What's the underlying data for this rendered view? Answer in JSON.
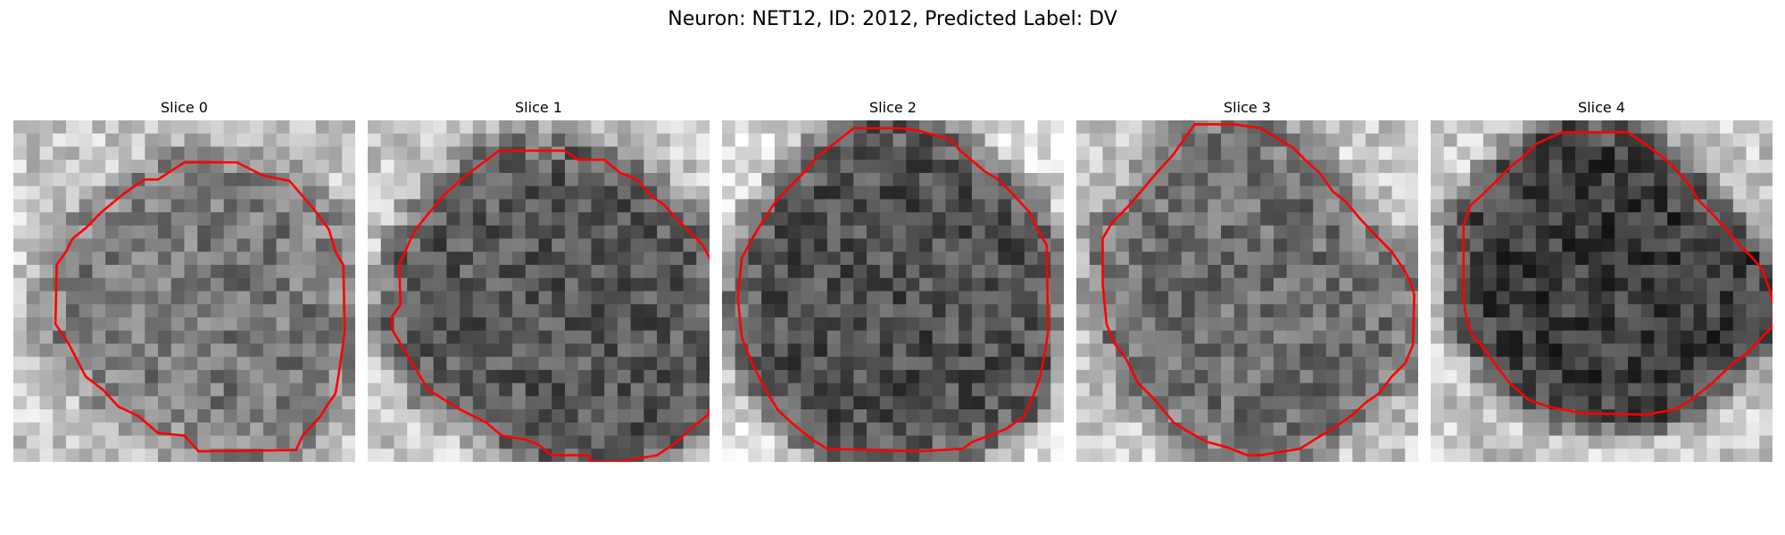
{
  "figure": {
    "title": "Neuron: NET12, ID: 2012, Predicted Label: DV"
  },
  "colors": {
    "contour": "#ff0000",
    "background": "#ffffff"
  },
  "grid": {
    "rows": 26,
    "cols": 26
  },
  "slices": [
    {
      "label": "Slice 0",
      "center_gray": 120,
      "edge_gray": 200,
      "seed": 11,
      "contour": [
        [
          13,
          3.2
        ],
        [
          17,
          3.2
        ],
        [
          19,
          4.2
        ],
        [
          21,
          4.6
        ],
        [
          22.8,
          6.7
        ],
        [
          24,
          8.3
        ],
        [
          24.5,
          10
        ],
        [
          25.1,
          11
        ],
        [
          25.2,
          16
        ],
        [
          25,
          17.5
        ],
        [
          24.8,
          19
        ],
        [
          24.5,
          20.8
        ],
        [
          24,
          21.5
        ],
        [
          23.3,
          22.6
        ],
        [
          22,
          24
        ],
        [
          21.5,
          25.1
        ],
        [
          14.1,
          25.2
        ],
        [
          13,
          24
        ],
        [
          11,
          23.8
        ],
        [
          9.5,
          22.5
        ],
        [
          8,
          21.8
        ],
        [
          6.8,
          20.5
        ],
        [
          5.5,
          19.5
        ],
        [
          4.2,
          17
        ],
        [
          3.2,
          15.5
        ],
        [
          3.3,
          11
        ],
        [
          4,
          10
        ],
        [
          4.5,
          9
        ],
        [
          5.5,
          8.2
        ],
        [
          6.8,
          6.9
        ],
        [
          8.5,
          5.5
        ],
        [
          10,
          4.5
        ],
        [
          11,
          4.5
        ]
      ]
    },
    {
      "label": "Slice 1",
      "center_gray": 88,
      "edge_gray": 200,
      "seed": 23,
      "contour": [
        [
          10,
          2.3
        ],
        [
          15,
          2.3
        ],
        [
          16,
          3
        ],
        [
          18,
          3
        ],
        [
          19.2,
          4
        ],
        [
          20.5,
          4.5
        ],
        [
          21.5,
          5.7
        ],
        [
          22.5,
          6.4
        ],
        [
          24,
          8
        ],
        [
          25.5,
          9.5
        ],
        [
          26,
          10.5
        ],
        [
          26.5,
          11.2
        ],
        [
          27,
          11
        ],
        [
          26.8,
          20
        ],
        [
          25.8,
          22.5
        ],
        [
          24.5,
          23.5
        ],
        [
          23.5,
          24.5
        ],
        [
          22,
          25.5
        ],
        [
          19,
          26
        ],
        [
          17,
          26
        ],
        [
          16.8,
          25.5
        ],
        [
          14,
          25.5
        ],
        [
          13,
          24.7
        ],
        [
          12,
          24.3
        ],
        [
          10.2,
          24
        ],
        [
          9,
          23
        ],
        [
          7,
          22
        ],
        [
          4.6,
          20.5
        ],
        [
          4,
          19.5
        ],
        [
          2.5,
          17
        ],
        [
          1.9,
          16
        ],
        [
          1.8,
          15
        ],
        [
          2.5,
          14
        ],
        [
          2.4,
          11
        ],
        [
          3.5,
          8.5
        ],
        [
          4.7,
          7
        ],
        [
          5.8,
          5.7
        ],
        [
          7,
          4.6
        ],
        [
          8,
          3.8
        ]
      ]
    },
    {
      "label": "Slice 2",
      "center_gray": 80,
      "edge_gray": 220,
      "seed": 37,
      "contour": [
        [
          10,
          0.6
        ],
        [
          13.5,
          0.6
        ],
        [
          15,
          0.8
        ],
        [
          17.5,
          1.5
        ],
        [
          18,
          2.2
        ],
        [
          20,
          3.9
        ],
        [
          21,
          4.5
        ],
        [
          22,
          5.5
        ],
        [
          23.4,
          7
        ],
        [
          24,
          8.3
        ],
        [
          24.7,
          9.5
        ],
        [
          24.8,
          16
        ],
        [
          24.6,
          17.5
        ],
        [
          24.2,
          19.5
        ],
        [
          23.7,
          20.9
        ],
        [
          23,
          22.5
        ],
        [
          21.6,
          23.5
        ],
        [
          19,
          24.5
        ],
        [
          18.3,
          25
        ],
        [
          15,
          25.2
        ],
        [
          8,
          25
        ],
        [
          7,
          24.4
        ],
        [
          5.5,
          23.2
        ],
        [
          4.3,
          22.1
        ],
        [
          3.3,
          20.5
        ],
        [
          2.3,
          18.5
        ],
        [
          1.5,
          16.5
        ],
        [
          1.2,
          13.5
        ],
        [
          1.5,
          10.5
        ],
        [
          2.3,
          9
        ],
        [
          3.2,
          7.5
        ],
        [
          4,
          6.3
        ],
        [
          5.2,
          5
        ],
        [
          6.2,
          4
        ],
        [
          7.3,
          2.7
        ],
        [
          8.5,
          1.8
        ]
      ]
    },
    {
      "label": "Slice 3",
      "center_gray": 110,
      "edge_gray": 200,
      "seed": 53,
      "contour": [
        [
          9,
          0.3
        ],
        [
          12,
          0.3
        ],
        [
          14,
          0.6
        ],
        [
          15.5,
          1.5
        ],
        [
          16.5,
          2.1
        ],
        [
          17.5,
          3.1
        ],
        [
          18.5,
          4
        ],
        [
          19.5,
          5.4
        ],
        [
          20.5,
          6.2
        ],
        [
          21.5,
          7.4
        ],
        [
          23,
          9
        ],
        [
          24,
          10
        ],
        [
          25,
          11.5
        ],
        [
          25.5,
          12.5
        ],
        [
          25.7,
          13.3
        ],
        [
          25.6,
          17.1
        ],
        [
          25,
          18.5
        ],
        [
          24,
          19.5
        ],
        [
          23,
          20.8
        ],
        [
          22,
          21.5
        ],
        [
          20.9,
          22.5
        ],
        [
          19.9,
          23.2
        ],
        [
          18.6,
          24
        ],
        [
          17,
          25
        ],
        [
          14,
          25.5
        ],
        [
          13,
          25.5
        ],
        [
          11.5,
          24.9
        ],
        [
          10,
          24.5
        ],
        [
          8.5,
          23.7
        ],
        [
          7.4,
          23
        ],
        [
          6,
          21.3
        ],
        [
          4.7,
          20
        ],
        [
          3.8,
          18.2
        ],
        [
          2.9,
          17
        ],
        [
          2.3,
          15.5
        ],
        [
          2,
          12.5
        ],
        [
          2,
          9
        ],
        [
          2.7,
          7.8
        ],
        [
          3.9,
          6.6
        ],
        [
          5,
          5.3
        ],
        [
          6.2,
          3.9
        ],
        [
          7.3,
          2.7
        ]
      ]
    },
    {
      "label": "Slice 4",
      "center_gray": 60,
      "edge_gray": 200,
      "seed": 71,
      "contour": [
        [
          8,
          1.8
        ],
        [
          10,
          0.9
        ],
        [
          15,
          0.9
        ],
        [
          16.3,
          1.8
        ],
        [
          18,
          3.1
        ],
        [
          19.6,
          4.8
        ],
        [
          20.3,
          6
        ],
        [
          21.5,
          7.2
        ],
        [
          22.4,
          8.2
        ],
        [
          23.5,
          9.5
        ],
        [
          24.5,
          10.5
        ],
        [
          25.2,
          11.3
        ],
        [
          25.8,
          13
        ],
        [
          26.1,
          14.2
        ],
        [
          26,
          15.7
        ],
        [
          25.4,
          16.3
        ],
        [
          24.3,
          17.5
        ],
        [
          23,
          18.5
        ],
        [
          21.3,
          20.1
        ],
        [
          19.5,
          21.5
        ],
        [
          18.5,
          22
        ],
        [
          16.5,
          22.4
        ],
        [
          11.5,
          22.3
        ],
        [
          9,
          21.8
        ],
        [
          7.5,
          21.3
        ],
        [
          6,
          20
        ],
        [
          5,
          18.7
        ],
        [
          4,
          17.3
        ],
        [
          3.1,
          16.3
        ],
        [
          2.7,
          15
        ],
        [
          2.5,
          13.5
        ],
        [
          2.5,
          8
        ],
        [
          3,
          6.5
        ],
        [
          4,
          5.6
        ],
        [
          5,
          4.6
        ],
        [
          6,
          3.6
        ],
        [
          7,
          2.8
        ]
      ]
    }
  ]
}
